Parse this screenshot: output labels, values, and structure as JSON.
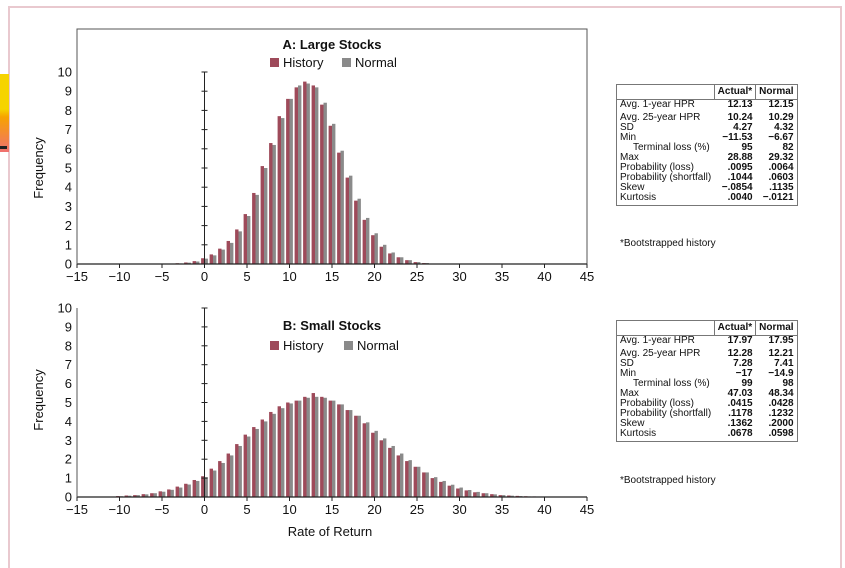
{
  "colors": {
    "history": "#9e4a5a",
    "normal": "#8a8a8a",
    "axis": "#222222",
    "frame": "#e9c9cf"
  },
  "chart_data": [
    {
      "type": "bar",
      "title": "A: Large Stocks",
      "legend": [
        "History",
        "Normal"
      ],
      "ylabel": "Frequency",
      "xlabel": "",
      "xlim": [
        -15,
        45
      ],
      "ylim": [
        0,
        10
      ],
      "xticks": [
        "−15",
        "−10",
        "−5",
        "0",
        "5",
        "10",
        "15",
        "20",
        "25",
        "30",
        "35",
        "40",
        "45"
      ],
      "yticks": [
        "0",
        "1",
        "2",
        "3",
        "4",
        "5",
        "6",
        "7",
        "8",
        "9",
        "10"
      ],
      "x": [
        -4,
        -3,
        -2,
        -1,
        0,
        1,
        2,
        3,
        4,
        5,
        6,
        7,
        8,
        9,
        10,
        11,
        12,
        13,
        14,
        15,
        16,
        17,
        18,
        19,
        20,
        21,
        22,
        23,
        24,
        25,
        26,
        27
      ],
      "series": [
        {
          "name": "History",
          "values": [
            0.02,
            0.04,
            0.08,
            0.15,
            0.3,
            0.5,
            0.8,
            1.2,
            1.8,
            2.6,
            3.7,
            5.1,
            6.3,
            7.7,
            8.6,
            9.2,
            9.5,
            9.3,
            8.3,
            7.2,
            5.8,
            4.5,
            3.3,
            2.3,
            1.5,
            0.9,
            0.55,
            0.35,
            0.2,
            0.1,
            0.05,
            0.02
          ]
        },
        {
          "name": "Normal",
          "values": [
            0.02,
            0.03,
            0.07,
            0.13,
            0.28,
            0.45,
            0.75,
            1.1,
            1.7,
            2.5,
            3.6,
            5.0,
            6.2,
            7.6,
            8.6,
            9.3,
            9.4,
            9.2,
            8.4,
            7.3,
            5.9,
            4.6,
            3.4,
            2.4,
            1.6,
            1.0,
            0.6,
            0.35,
            0.2,
            0.1,
            0.05,
            0.02
          ]
        }
      ]
    },
    {
      "type": "bar",
      "title": "B: Small Stocks",
      "legend": [
        "History",
        "Normal"
      ],
      "ylabel": "Frequency",
      "xlabel": "Rate of Return",
      "xlim": [
        -15,
        45
      ],
      "ylim": [
        0,
        10
      ],
      "xticks": [
        "−15",
        "−10",
        "−5",
        "0",
        "5",
        "10",
        "15",
        "20",
        "25",
        "30",
        "35",
        "40",
        "45"
      ],
      "yticks": [
        "0",
        "1",
        "2",
        "3",
        "4",
        "5",
        "6",
        "7",
        "8",
        "9",
        "10"
      ],
      "x": [
        -10,
        -9,
        -8,
        -7,
        -6,
        -5,
        -4,
        -3,
        -2,
        -1,
        0,
        1,
        2,
        3,
        4,
        5,
        6,
        7,
        8,
        9,
        10,
        11,
        12,
        13,
        14,
        15,
        16,
        17,
        18,
        19,
        20,
        21,
        22,
        23,
        24,
        25,
        26,
        27,
        28,
        29,
        30,
        31,
        32,
        33,
        34,
        35,
        36,
        37,
        38,
        39,
        40
      ],
      "series": [
        {
          "name": "History",
          "values": [
            0.05,
            0.08,
            0.1,
            0.15,
            0.2,
            0.3,
            0.4,
            0.55,
            0.7,
            0.9,
            1.1,
            1.5,
            1.9,
            2.3,
            2.8,
            3.3,
            3.7,
            4.1,
            4.5,
            4.8,
            5.0,
            5.1,
            5.3,
            5.5,
            5.3,
            5.1,
            4.9,
            4.6,
            4.3,
            3.9,
            3.4,
            3.0,
            2.6,
            2.2,
            1.9,
            1.6,
            1.3,
            1.0,
            0.8,
            0.6,
            0.45,
            0.35,
            0.25,
            0.2,
            0.15,
            0.1,
            0.08,
            0.06,
            0.04,
            0.03,
            0.02
          ]
        },
        {
          "name": "Normal",
          "values": [
            0.04,
            0.07,
            0.1,
            0.14,
            0.2,
            0.28,
            0.38,
            0.5,
            0.66,
            0.85,
            1.05,
            1.4,
            1.8,
            2.2,
            2.7,
            3.2,
            3.6,
            4.0,
            4.4,
            4.7,
            4.95,
            5.1,
            5.25,
            5.3,
            5.25,
            5.1,
            4.9,
            4.6,
            4.3,
            3.95,
            3.5,
            3.1,
            2.7,
            2.3,
            1.95,
            1.6,
            1.3,
            1.05,
            0.85,
            0.65,
            0.5,
            0.37,
            0.27,
            0.2,
            0.14,
            0.1,
            0.07,
            0.05,
            0.03,
            0.02,
            0.01
          ]
        }
      ]
    }
  ],
  "tables": [
    {
      "headers": [
        "",
        "Actual*",
        "Normal"
      ],
      "rows": [
        [
          "Avg. 1-year HPR",
          "12.13",
          "12.15"
        ],
        [
          "Avg. 25-year HPR",
          "10.24",
          "10.29"
        ],
        [
          "SD",
          "4.27",
          "4.32"
        ],
        [
          "Min",
          "−11.53",
          "−6.67"
        ],
        [
          "Terminal loss (%)",
          "95",
          "82"
        ],
        [
          "Max",
          "28.88",
          "29.32"
        ],
        [
          "Probability (loss)",
          ".0095",
          ".0064"
        ],
        [
          "Probability (shortfall)",
          ".1044",
          ".0603"
        ],
        [
          "Skew",
          "−.0854",
          ".1135"
        ],
        [
          "Kurtosis",
          ".0040",
          "−.0121"
        ]
      ],
      "footnote": "*Bootstrapped history"
    },
    {
      "headers": [
        "",
        "Actual*",
        "Normal"
      ],
      "rows": [
        [
          "Avg. 1-year HPR",
          "17.97",
          "17.95"
        ],
        [
          "Avg. 25-year HPR",
          "12.28",
          "12.21"
        ],
        [
          "SD",
          "7.28",
          "7.41"
        ],
        [
          "Min",
          "−17",
          "−14.9"
        ],
        [
          "Terminal loss (%)",
          "99",
          "98"
        ],
        [
          "Max",
          "47.03",
          "48.34"
        ],
        [
          "Probability (loss)",
          ".0415",
          ".0428"
        ],
        [
          "Probability (shortfall)",
          ".1178",
          ".1232"
        ],
        [
          "Skew",
          ".1362",
          ".2000"
        ],
        [
          "Kurtosis",
          ".0678",
          ".0598"
        ]
      ],
      "footnote": "*Bootstrapped history"
    }
  ]
}
